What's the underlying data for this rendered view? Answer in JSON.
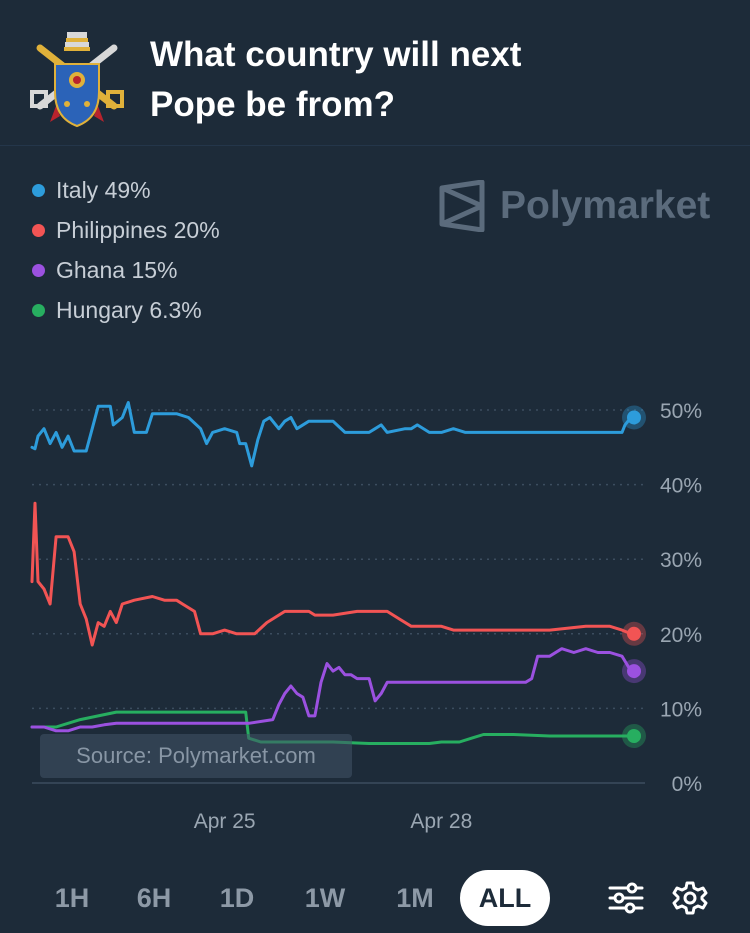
{
  "header": {
    "title": "What country will next Pope be from?",
    "logo_icon": "papal-coat-of-arms-icon"
  },
  "brand": {
    "name": "Polymarket",
    "icon": "polymarket-logo-icon"
  },
  "source_label": "Source: Polymarket.com",
  "legend": [
    {
      "label": "Italy 49%",
      "color": "#2d9cdb"
    },
    {
      "label": "Philippines 20%",
      "color": "#f25454"
    },
    {
      "label": "Ghana 15%",
      "color": "#9b51e0"
    },
    {
      "label": "Hungary 6.3%",
      "color": "#27ae60"
    }
  ],
  "controls": {
    "ranges": [
      "1H",
      "6H",
      "1D",
      "1W",
      "1M",
      "ALL"
    ],
    "active_range": "ALL",
    "filter_icon": "sliders-icon",
    "settings_icon": "gear-icon"
  },
  "chart_data": {
    "type": "line",
    "title": "What country will next Pope be from?",
    "y_unit": "%",
    "ylim": [
      0,
      50
    ],
    "yticks": [
      0,
      10,
      20,
      30,
      40,
      50
    ],
    "ytick_labels": [
      "0%",
      "10%",
      "20%",
      "30%",
      "40%",
      "50%"
    ],
    "x_range": [
      "2025-04-22T08:00",
      "2025-04-30T16:00"
    ],
    "x_ticks": [
      {
        "x": "2025-04-25",
        "label": "Apr 25"
      },
      {
        "x": "2025-04-28",
        "label": "Apr 28"
      }
    ],
    "grid": true,
    "legend_position": "top-left",
    "series": [
      {
        "name": "Italy",
        "color": "#2d9cdb",
        "last": 49,
        "points": [
          [
            "2025-04-22T08:00",
            45
          ],
          [
            "2025-04-22T09:00",
            44.8
          ],
          [
            "2025-04-22T10:00",
            46.5
          ],
          [
            "2025-04-22T12:00",
            47.5
          ],
          [
            "2025-04-22T14:00",
            45.5
          ],
          [
            "2025-04-22T16:00",
            47
          ],
          [
            "2025-04-22T18:00",
            45
          ],
          [
            "2025-04-22T20:00",
            46.5
          ],
          [
            "2025-04-22T22:00",
            44.5
          ],
          [
            "2025-04-23T02:00",
            44.5
          ],
          [
            "2025-04-23T04:00",
            47.5
          ],
          [
            "2025-04-23T06:00",
            50.5
          ],
          [
            "2025-04-23T10:00",
            50.5
          ],
          [
            "2025-04-23T11:00",
            48
          ],
          [
            "2025-04-23T14:00",
            49
          ],
          [
            "2025-04-23T16:00",
            51
          ],
          [
            "2025-04-23T18:00",
            47
          ],
          [
            "2025-04-23T22:00",
            47
          ],
          [
            "2025-04-24T00:00",
            49.5
          ],
          [
            "2025-04-24T08:00",
            49.5
          ],
          [
            "2025-04-24T12:00",
            49
          ],
          [
            "2025-04-24T16:00",
            47.5
          ],
          [
            "2025-04-24T18:00",
            45.5
          ],
          [
            "2025-04-24T20:00",
            47
          ],
          [
            "2025-04-25T00:00",
            47.5
          ],
          [
            "2025-04-25T04:00",
            47
          ],
          [
            "2025-04-25T05:00",
            45.5
          ],
          [
            "2025-04-25T07:00",
            45.5
          ],
          [
            "2025-04-25T09:00",
            42.5
          ],
          [
            "2025-04-25T11:00",
            46
          ],
          [
            "2025-04-25T13:00",
            48.5
          ],
          [
            "2025-04-25T15:00",
            49
          ],
          [
            "2025-04-25T18:00",
            47.5
          ],
          [
            "2025-04-25T20:00",
            48.5
          ],
          [
            "2025-04-25T22:00",
            49
          ],
          [
            "2025-04-26T00:00",
            47.5
          ],
          [
            "2025-04-26T04:00",
            48.5
          ],
          [
            "2025-04-26T08:00",
            48.5
          ],
          [
            "2025-04-26T12:00",
            48.5
          ],
          [
            "2025-04-26T16:00",
            47
          ],
          [
            "2025-04-26T20:00",
            47
          ],
          [
            "2025-04-27T00:00",
            47
          ],
          [
            "2025-04-27T02:00",
            47.5
          ],
          [
            "2025-04-27T04:00",
            48
          ],
          [
            "2025-04-27T06:00",
            47
          ],
          [
            "2025-04-27T12:00",
            47.5
          ],
          [
            "2025-04-27T14:00",
            47.5
          ],
          [
            "2025-04-27T16:00",
            48
          ],
          [
            "2025-04-27T20:00",
            47
          ],
          [
            "2025-04-28T00:00",
            47
          ],
          [
            "2025-04-28T04:00",
            47.5
          ],
          [
            "2025-04-28T08:00",
            47
          ],
          [
            "2025-04-28T14:00",
            47
          ],
          [
            "2025-04-28T20:00",
            47
          ],
          [
            "2025-04-29T12:00",
            47
          ],
          [
            "2025-04-30T00:00",
            47
          ],
          [
            "2025-04-30T08:00",
            47
          ],
          [
            "2025-04-30T12:00",
            47
          ],
          [
            "2025-04-30T13:00",
            48
          ],
          [
            "2025-04-30T15:00",
            49
          ]
        ]
      },
      {
        "name": "Philippines",
        "color": "#f25454",
        "last": 20,
        "points": [
          [
            "2025-04-22T08:00",
            27
          ],
          [
            "2025-04-22T09:00",
            37.5
          ],
          [
            "2025-04-22T10:00",
            27
          ],
          [
            "2025-04-22T12:00",
            26
          ],
          [
            "2025-04-22T14:00",
            24
          ],
          [
            "2025-04-22T16:00",
            33
          ],
          [
            "2025-04-22T18:00",
            33
          ],
          [
            "2025-04-22T20:00",
            33
          ],
          [
            "2025-04-22T22:00",
            31
          ],
          [
            "2025-04-23T00:00",
            24
          ],
          [
            "2025-04-23T02:00",
            22
          ],
          [
            "2025-04-23T04:00",
            18.5
          ],
          [
            "2025-04-23T06:00",
            21.5
          ],
          [
            "2025-04-23T08:00",
            21
          ],
          [
            "2025-04-23T10:00",
            23
          ],
          [
            "2025-04-23T12:00",
            21.5
          ],
          [
            "2025-04-23T14:00",
            24
          ],
          [
            "2025-04-23T18:00",
            24.5
          ],
          [
            "2025-04-24T00:00",
            25
          ],
          [
            "2025-04-24T04:00",
            24.5
          ],
          [
            "2025-04-24T08:00",
            24.5
          ],
          [
            "2025-04-24T10:00",
            24
          ],
          [
            "2025-04-24T14:00",
            23
          ],
          [
            "2025-04-24T16:00",
            20
          ],
          [
            "2025-04-24T20:00",
            20
          ],
          [
            "2025-04-25T00:00",
            20.5
          ],
          [
            "2025-04-25T04:00",
            20
          ],
          [
            "2025-04-25T10:00",
            20
          ],
          [
            "2025-04-25T14:00",
            21.5
          ],
          [
            "2025-04-25T16:00",
            22
          ],
          [
            "2025-04-25T20:00",
            23
          ],
          [
            "2025-04-26T04:00",
            23
          ],
          [
            "2025-04-26T06:00",
            22.5
          ],
          [
            "2025-04-26T12:00",
            22.5
          ],
          [
            "2025-04-26T20:00",
            23
          ],
          [
            "2025-04-27T00:00",
            23
          ],
          [
            "2025-04-27T06:00",
            23
          ],
          [
            "2025-04-27T10:00",
            22
          ],
          [
            "2025-04-27T14:00",
            21
          ],
          [
            "2025-04-27T20:00",
            21
          ],
          [
            "2025-04-28T00:00",
            21
          ],
          [
            "2025-04-28T04:00",
            20.5
          ],
          [
            "2025-04-28T10:00",
            20.5
          ],
          [
            "2025-04-29T00:00",
            20.5
          ],
          [
            "2025-04-29T12:00",
            20.5
          ],
          [
            "2025-04-30T00:00",
            21
          ],
          [
            "2025-04-30T08:00",
            21
          ],
          [
            "2025-04-30T12:00",
            20.5
          ],
          [
            "2025-04-30T15:00",
            20
          ]
        ]
      },
      {
        "name": "Ghana",
        "color": "#9b51e0",
        "last": 15,
        "points": [
          [
            "2025-04-22T08:00",
            7.5
          ],
          [
            "2025-04-22T12:00",
            7.5
          ],
          [
            "2025-04-22T16:00",
            7
          ],
          [
            "2025-04-22T20:00",
            7
          ],
          [
            "2025-04-23T00:00",
            7.5
          ],
          [
            "2025-04-23T04:00",
            7.5
          ],
          [
            "2025-04-23T08:00",
            7.8
          ],
          [
            "2025-04-23T12:00",
            8
          ],
          [
            "2025-04-23T16:00",
            8
          ],
          [
            "2025-04-23T20:00",
            8
          ],
          [
            "2025-04-24T00:00",
            8
          ],
          [
            "2025-04-24T08:00",
            8
          ],
          [
            "2025-04-24T16:00",
            8
          ],
          [
            "2025-04-25T00:00",
            8
          ],
          [
            "2025-04-25T08:00",
            8
          ],
          [
            "2025-04-25T16:00",
            8.5
          ],
          [
            "2025-04-25T18:00",
            10.5
          ],
          [
            "2025-04-25T20:00",
            12
          ],
          [
            "2025-04-25T22:00",
            13
          ],
          [
            "2025-04-26T00:00",
            12
          ],
          [
            "2025-04-26T02:00",
            11.5
          ],
          [
            "2025-04-26T04:00",
            9
          ],
          [
            "2025-04-26T06:00",
            9
          ],
          [
            "2025-04-26T08:00",
            13.5
          ],
          [
            "2025-04-26T10:00",
            16
          ],
          [
            "2025-04-26T12:00",
            15
          ],
          [
            "2025-04-26T14:00",
            15.5
          ],
          [
            "2025-04-26T16:00",
            14.5
          ],
          [
            "2025-04-26T18:00",
            14.5
          ],
          [
            "2025-04-26T20:00",
            14
          ],
          [
            "2025-04-26T22:00",
            14
          ],
          [
            "2025-04-27T00:00",
            14
          ],
          [
            "2025-04-27T02:00",
            11
          ],
          [
            "2025-04-27T04:00",
            12
          ],
          [
            "2025-04-27T06:00",
            13.5
          ],
          [
            "2025-04-27T08:00",
            13.5
          ],
          [
            "2025-04-27T12:00",
            13.5
          ],
          [
            "2025-04-27T20:00",
            13.5
          ],
          [
            "2025-04-28T00:00",
            13.5
          ],
          [
            "2025-04-28T08:00",
            13.5
          ],
          [
            "2025-04-28T16:00",
            13.5
          ],
          [
            "2025-04-29T00:00",
            13.5
          ],
          [
            "2025-04-29T04:00",
            13.5
          ],
          [
            "2025-04-29T06:00",
            14
          ],
          [
            "2025-04-29T08:00",
            17
          ],
          [
            "2025-04-29T12:00",
            17
          ],
          [
            "2025-04-29T16:00",
            18
          ],
          [
            "2025-04-29T20:00",
            17.5
          ],
          [
            "2025-04-30T00:00",
            18
          ],
          [
            "2025-04-30T04:00",
            17.5
          ],
          [
            "2025-04-30T08:00",
            17.5
          ],
          [
            "2025-04-30T12:00",
            17
          ],
          [
            "2025-04-30T15:00",
            15
          ]
        ]
      },
      {
        "name": "Hungary",
        "color": "#27ae60",
        "last": 6.3,
        "points": [
          [
            "2025-04-22T08:00",
            7.5
          ],
          [
            "2025-04-22T16:00",
            7.5
          ],
          [
            "2025-04-23T00:00",
            8.5
          ],
          [
            "2025-04-23T06:00",
            9
          ],
          [
            "2025-04-23T12:00",
            9.5
          ],
          [
            "2025-04-23T20:00",
            9.5
          ],
          [
            "2025-04-24T04:00",
            9.5
          ],
          [
            "2025-04-24T12:00",
            9.5
          ],
          [
            "2025-04-24T20:00",
            9.5
          ],
          [
            "2025-04-25T04:00",
            9.5
          ],
          [
            "2025-04-25T07:00",
            9.5
          ],
          [
            "2025-04-25T08:00",
            6
          ],
          [
            "2025-04-25T12:00",
            5.5
          ],
          [
            "2025-04-25T20:00",
            5.5
          ],
          [
            "2025-04-26T12:00",
            5.5
          ],
          [
            "2025-04-27T00:00",
            5.3
          ],
          [
            "2025-04-27T12:00",
            5.3
          ],
          [
            "2025-04-27T20:00",
            5.3
          ],
          [
            "2025-04-28T00:00",
            5.5
          ],
          [
            "2025-04-28T06:00",
            5.5
          ],
          [
            "2025-04-28T10:00",
            6
          ],
          [
            "2025-04-28T14:00",
            6.5
          ],
          [
            "2025-04-29T00:00",
            6.5
          ],
          [
            "2025-04-29T12:00",
            6.3
          ],
          [
            "2025-04-30T00:00",
            6.3
          ],
          [
            "2025-04-30T15:00",
            6.3
          ]
        ]
      }
    ]
  }
}
